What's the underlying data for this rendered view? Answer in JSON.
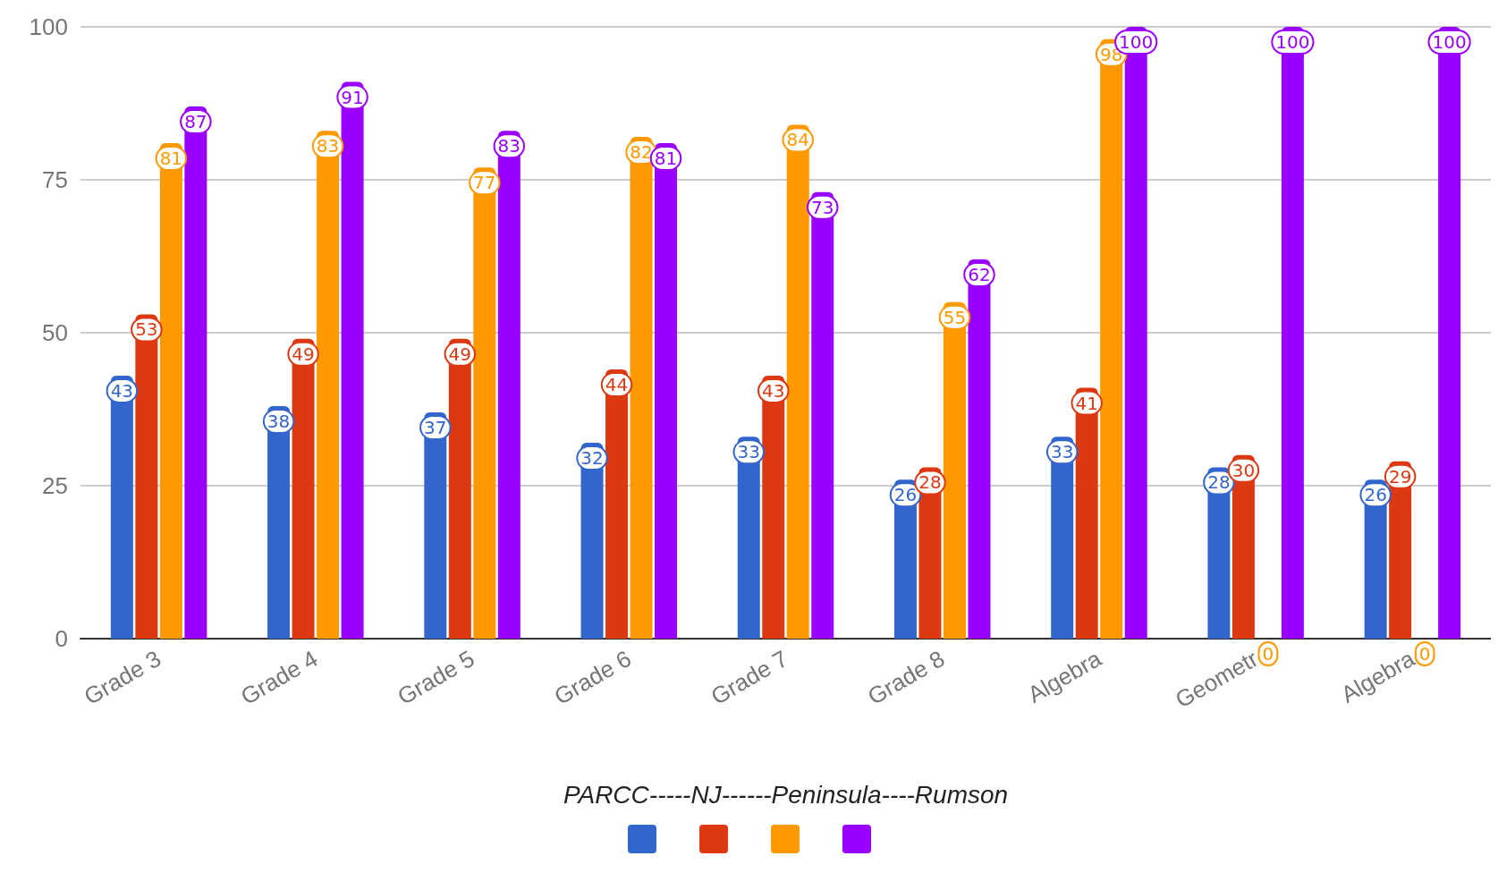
{
  "chart_data": {
    "type": "bar",
    "xlabel": "PARCC-----NJ------Peninsula----Rumson",
    "categories": [
      "Grade 3",
      "Grade 4",
      "Grade 5",
      "Grade 6",
      "Grade 7",
      "Grade 8",
      "Algebra",
      "Geometr",
      "Algebra"
    ],
    "series": [
      {
        "color": "#3366cc",
        "values": [
          43,
          38,
          37,
          32,
          33,
          26,
          33,
          28,
          26
        ]
      },
      {
        "color": "#dc3912",
        "values": [
          53,
          49,
          49,
          44,
          43,
          28,
          41,
          30,
          29
        ]
      },
      {
        "color": "#ff9900",
        "values": [
          81,
          83,
          77,
          82,
          84,
          55,
          98,
          0,
          0
        ]
      },
      {
        "color": "#9900ff",
        "values": [
          87,
          91,
          83,
          81,
          73,
          62,
          100,
          100,
          100
        ]
      }
    ],
    "ylim": [
      0,
      100
    ],
    "yticks": [
      0,
      25,
      50,
      75,
      100
    ],
    "grid": "y",
    "data_labels": true
  }
}
